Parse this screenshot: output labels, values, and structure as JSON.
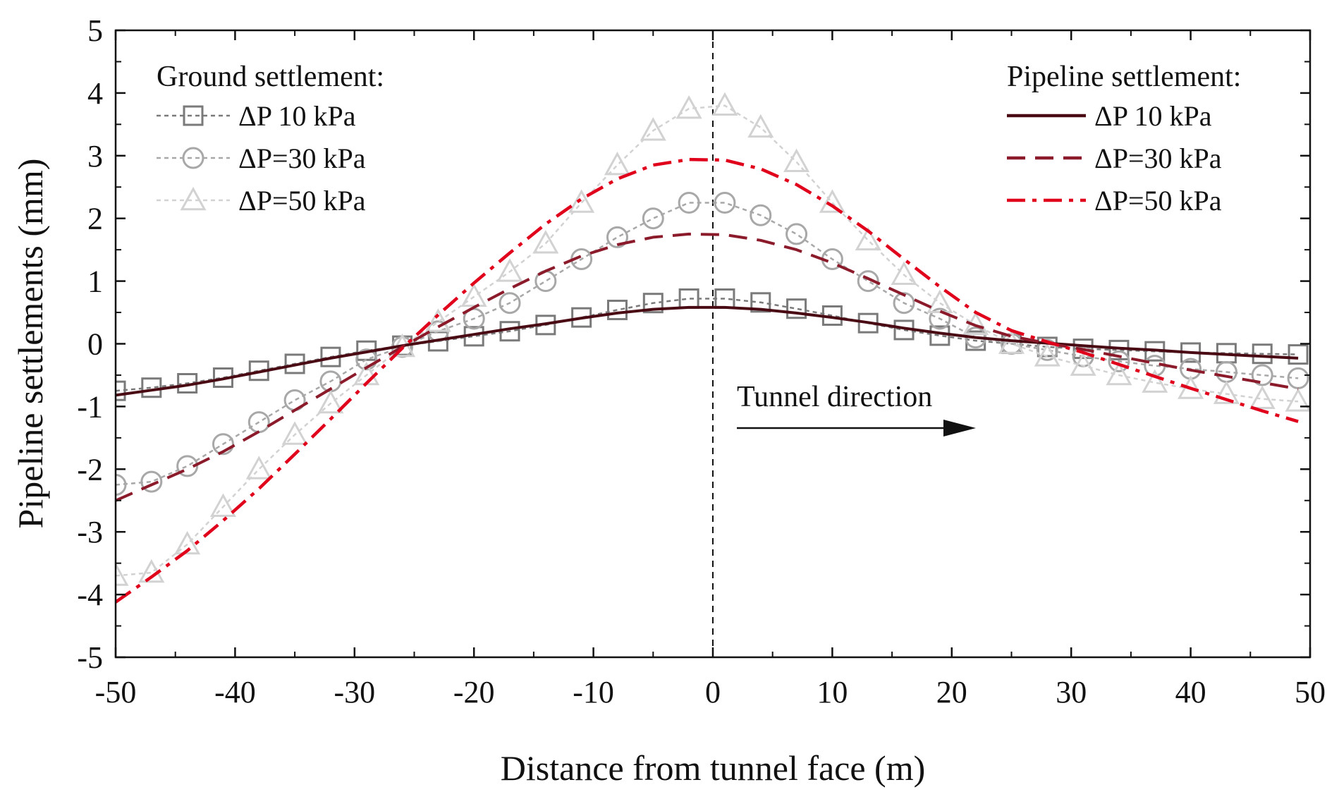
{
  "chart_data": {
    "type": "line",
    "title": "",
    "xlabel": "Distance from tunnel face (m)",
    "ylabel": "Pipeline settlements (mm)",
    "xlim": [
      -50,
      50
    ],
    "ylim": [
      -5,
      5
    ],
    "xticks": [
      -50,
      -40,
      -30,
      -20,
      -10,
      0,
      10,
      20,
      30,
      40,
      50
    ],
    "yticks": [
      5,
      4,
      3,
      2,
      1,
      0,
      -1,
      -2,
      -3,
      -4,
      -5
    ],
    "grid": false,
    "legend_ground_title": "Ground settlement:",
    "legend_pipeline_title": "Pipeline settlement:",
    "annotation": "Tunnel direction",
    "colors": {
      "ground_10": "#7a7a7a",
      "ground_30": "#a8a8a8",
      "ground_50": "#d2d2d2",
      "pipe_10": "#4a0a14",
      "pipe_30": "#8b1a2a",
      "pipe_50": "#e0001b"
    },
    "x": [
      -50,
      -47,
      -44,
      -41,
      -38,
      -35,
      -32,
      -29,
      -26,
      -23,
      -20,
      -17,
      -14,
      -11,
      -8,
      -5,
      -2,
      1,
      4,
      7,
      10,
      13,
      16,
      19,
      22,
      25,
      28,
      31,
      34,
      37,
      40,
      43,
      46,
      49
    ],
    "series": [
      {
        "id": "ground_10",
        "group": "ground",
        "name": "ΔP  10 kPa",
        "style": "dotted-square",
        "values": [
          -0.75,
          -0.7,
          -0.63,
          -0.54,
          -0.43,
          -0.32,
          -0.21,
          -0.11,
          -0.03,
          0.04,
          0.12,
          0.2,
          0.3,
          0.42,
          0.54,
          0.65,
          0.72,
          0.72,
          0.66,
          0.56,
          0.45,
          0.33,
          0.22,
          0.13,
          0.05,
          0.0,
          -0.05,
          -0.08,
          -0.1,
          -0.12,
          -0.14,
          -0.15,
          -0.16,
          -0.17
        ]
      },
      {
        "id": "ground_30",
        "group": "ground",
        "name": "ΔP=30 kPa",
        "style": "dotted-circle",
        "values": [
          -2.25,
          -2.2,
          -1.95,
          -1.6,
          -1.25,
          -0.9,
          -0.6,
          -0.25,
          -0.05,
          0.2,
          0.4,
          0.65,
          1.0,
          1.35,
          1.7,
          2.0,
          2.25,
          2.25,
          2.05,
          1.75,
          1.35,
          1.0,
          0.65,
          0.4,
          0.1,
          0.0,
          -0.1,
          -0.2,
          -0.28,
          -0.35,
          -0.4,
          -0.45,
          -0.5,
          -0.55
        ]
      },
      {
        "id": "ground_50",
        "group": "ground",
        "name": "ΔP=50 kPa",
        "style": "dotted-triangle",
        "values": [
          -3.7,
          -3.65,
          -3.2,
          -2.6,
          -2.0,
          -1.45,
          -0.95,
          -0.5,
          -0.05,
          0.35,
          0.75,
          1.15,
          1.6,
          2.25,
          2.85,
          3.4,
          3.75,
          3.8,
          3.45,
          2.9,
          2.25,
          1.65,
          1.1,
          0.65,
          0.3,
          0.0,
          -0.2,
          -0.35,
          -0.5,
          -0.62,
          -0.72,
          -0.8,
          -0.88,
          -0.92
        ]
      },
      {
        "id": "pipe_10",
        "group": "pipeline",
        "name": "ΔP  10 kPa",
        "style": "solid",
        "values": [
          -0.82,
          -0.74,
          -0.66,
          -0.56,
          -0.45,
          -0.34,
          -0.23,
          -0.13,
          -0.03,
          0.06,
          0.15,
          0.24,
          0.32,
          0.41,
          0.49,
          0.55,
          0.58,
          0.58,
          0.55,
          0.49,
          0.42,
          0.34,
          0.25,
          0.17,
          0.1,
          0.05,
          0.01,
          -0.03,
          -0.07,
          -0.1,
          -0.14,
          -0.17,
          -0.2,
          -0.23
        ]
      },
      {
        "id": "pipe_30",
        "group": "pipeline",
        "name": "ΔP=30 kPa",
        "style": "dashed",
        "values": [
          -2.5,
          -2.25,
          -2.0,
          -1.72,
          -1.4,
          -1.06,
          -0.72,
          -0.38,
          -0.05,
          0.27,
          0.58,
          0.88,
          1.16,
          1.4,
          1.58,
          1.7,
          1.75,
          1.74,
          1.65,
          1.5,
          1.29,
          1.04,
          0.78,
          0.52,
          0.29,
          0.12,
          0.01,
          -0.09,
          -0.2,
          -0.31,
          -0.42,
          -0.52,
          -0.62,
          -0.72
        ]
      },
      {
        "id": "pipe_50",
        "group": "pipeline",
        "name": "ΔP=50 kPa",
        "style": "dash-dot",
        "values": [
          -4.12,
          -3.72,
          -3.3,
          -2.82,
          -2.31,
          -1.76,
          -1.2,
          -0.63,
          -0.07,
          0.46,
          0.97,
          1.45,
          1.91,
          2.31,
          2.63,
          2.85,
          2.94,
          2.93,
          2.79,
          2.54,
          2.2,
          1.8,
          1.35,
          0.91,
          0.5,
          0.21,
          0.03,
          -0.14,
          -0.33,
          -0.52,
          -0.71,
          -0.89,
          -1.07,
          -1.24
        ]
      }
    ]
  }
}
